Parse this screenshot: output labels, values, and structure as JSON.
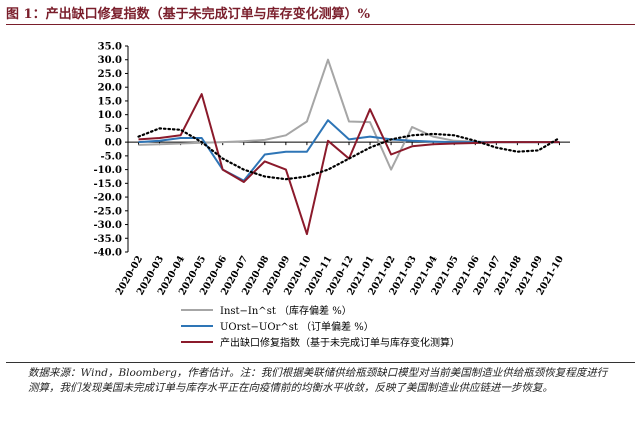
{
  "title": "图 1：产出缺口修复指数（基于未完成订单与库存变化测算）%",
  "source_note": "数据来源：Wind，Bloomberg，作者估计。注：我们根据美联储供给瓶颈缺口模型对当前美国制造业供给瓶颈恢复程度进行测算，我们发现美国未完成订单与库存水平正在向疫情前的均衡水平收敛，反映了美国制造业供应链进一步恢复。",
  "chart_data": {
    "type": "line",
    "categories": [
      "2020-02",
      "2020-03",
      "2020-04",
      "2020-05",
      "2020-06",
      "2020-07",
      "2020-08",
      "2020-09",
      "2020-10",
      "2020-11",
      "2020-12",
      "2021-01",
      "2021-02",
      "2021-03",
      "2021-04",
      "2021-05",
      "2021-06",
      "2021-07",
      "2021-08",
      "2021-09",
      "2021-10"
    ],
    "y_ticks": [
      "35.0",
      "30.0",
      "25.0",
      "20.0",
      "15.0",
      "10.0",
      "5.0",
      "0.0",
      "-5.0",
      "-10.0",
      "-15.0",
      "-20.0",
      "-25.0",
      "-30.0",
      "-35.0",
      "-40.0"
    ],
    "ylim": [
      -40,
      35
    ],
    "grid": false,
    "legend_position": "bottom",
    "series": [
      {
        "name": "Inst−In^st （库存偏差 %）",
        "color": "#a6a6a6",
        "style": "solid",
        "values": [
          -1.0,
          -0.8,
          -0.5,
          -0.2,
          0.0,
          0.3,
          0.8,
          2.5,
          7.5,
          30.0,
          7.5,
          7.3,
          -10.0,
          5.5,
          2.0,
          0.5,
          0.2,
          0.0,
          0.0,
          0.0,
          0.0
        ]
      },
      {
        "name": "UOrst−UOr^st （订单偏差 %）",
        "color": "#2e75b6",
        "style": "solid",
        "values": [
          0.0,
          0.5,
          1.5,
          1.5,
          -10.0,
          -14.0,
          -4.5,
          -3.5,
          -3.5,
          8.0,
          1.0,
          2.0,
          1.0,
          0.5,
          0.2,
          0.0,
          0.0,
          0.0,
          0.0,
          0.0,
          0.0
        ]
      },
      {
        "name": "产出缺口修复指数（基于未完成订单与库存变化测算）",
        "color": "#8b1a2b",
        "style": "solid",
        "values": [
          1.0,
          1.5,
          2.5,
          17.5,
          -10.0,
          -14.5,
          -7.0,
          -10.0,
          -33.5,
          0.5,
          -6.0,
          12.0,
          -4.5,
          -1.5,
          -0.8,
          -0.5,
          -0.3,
          0.0,
          0.0,
          0.0,
          0.0
        ]
      },
      {
        "name": "",
        "color": "#000000",
        "style": "dotted",
        "legend": false,
        "values": [
          2.0,
          5.0,
          4.5,
          0.0,
          -6.0,
          -10.0,
          -12.5,
          -13.5,
          -12.5,
          -10.0,
          -6.0,
          -2.0,
          1.0,
          2.5,
          3.0,
          2.5,
          0.5,
          -2.0,
          -3.5,
          -3.0,
          1.5
        ]
      }
    ]
  }
}
